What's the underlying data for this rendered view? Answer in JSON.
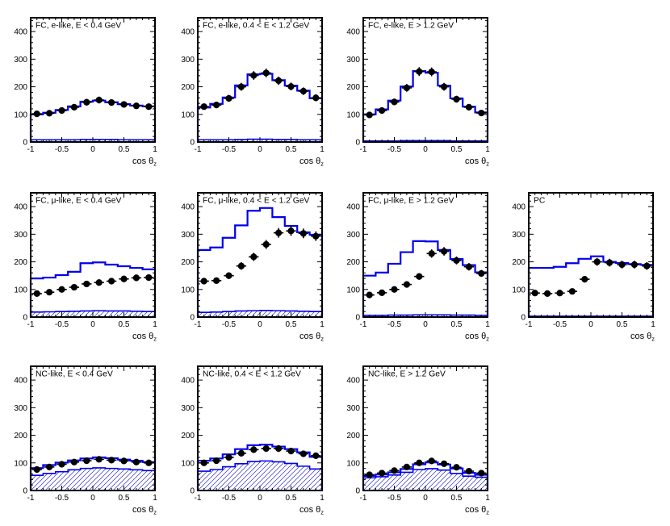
{
  "figure": {
    "xlabel_base": "cos θ",
    "xlabel_sub": "z",
    "colors": {
      "mc_line": "#0000ee",
      "hatch_line": "#3333cc",
      "data_marker": "#000000",
      "frame": "#000000"
    }
  },
  "chart_data": {
    "type": "line",
    "x_bin_edges": [
      -1,
      -0.8,
      -0.6,
      -0.4,
      -0.2,
      0,
      0.2,
      0.4,
      0.6,
      0.8,
      1
    ],
    "x_centers": [
      -0.9,
      -0.7,
      -0.5,
      -0.3,
      -0.1,
      0.1,
      0.3,
      0.5,
      0.7,
      0.9
    ],
    "xlabel": "cos θ_z",
    "xticks": [
      -1,
      -0.5,
      0,
      0.5,
      1
    ],
    "yticks": [
      0,
      100,
      200,
      300,
      400
    ],
    "ylim": [
      0,
      450
    ],
    "grid": false,
    "legend_position": "none",
    "panels": [
      {
        "id": "fc-elike-low",
        "title": "FC, e-like, E < 0.4 GeV",
        "row": 0,
        "col": 0,
        "data": [
          102,
          104,
          114,
          126,
          144,
          152,
          143,
          136,
          131,
          128
        ],
        "total_mc": [
          100,
          106,
          116,
          129,
          146,
          150,
          144,
          137,
          132,
          129
        ],
        "background": [
          8,
          8,
          8,
          8,
          9,
          9,
          9,
          8,
          8,
          8
        ]
      },
      {
        "id": "fc-elike-mid",
        "title": "FC, e-like, 0.4 < E < 1.2 GeV",
        "row": 0,
        "col": 1,
        "data": [
          128,
          134,
          158,
          200,
          241,
          250,
          222,
          201,
          184,
          160
        ],
        "total_mc": [
          125,
          138,
          161,
          205,
          245,
          247,
          224,
          204,
          186,
          158
        ],
        "background": [
          8,
          8,
          8,
          9,
          10,
          10,
          9,
          9,
          8,
          8
        ]
      },
      {
        "id": "fc-elike-high",
        "title": "FC, e-like, E > 1.2 GeV",
        "row": 0,
        "col": 2,
        "data": [
          98,
          114,
          145,
          196,
          255,
          254,
          200,
          155,
          126,
          105
        ],
        "total_mc": [
          100,
          118,
          150,
          201,
          257,
          251,
          204,
          158,
          128,
          107
        ],
        "background": [
          4,
          4,
          4,
          5,
          5,
          5,
          5,
          4,
          4,
          4
        ]
      },
      {
        "id": "fc-mulike-low",
        "title": "FC, μ-like, E < 0.4 GeV",
        "row": 1,
        "col": 0,
        "data": [
          85,
          90,
          100,
          108,
          120,
          125,
          130,
          138,
          142,
          143
        ],
        "total_mc": [
          140,
          143,
          152,
          164,
          195,
          198,
          190,
          184,
          178,
          173
        ],
        "background": [
          18,
          19,
          20,
          21,
          22,
          23,
          22,
          22,
          21,
          20
        ]
      },
      {
        "id": "fc-mulike-mid",
        "title": "FC, μ-like, 0.4 < E < 1.2 GeV",
        "row": 1,
        "col": 1,
        "data": [
          130,
          132,
          150,
          185,
          218,
          263,
          305,
          312,
          303,
          293
        ],
        "total_mc": [
          243,
          252,
          287,
          332,
          385,
          395,
          362,
          330,
          307,
          298
        ],
        "background": [
          17,
          18,
          20,
          22,
          23,
          24,
          23,
          22,
          21,
          20
        ]
      },
      {
        "id": "fc-mulike-high",
        "title": "FC, μ-like, E > 1.2 GeV",
        "row": 1,
        "col": 2,
        "data": [
          80,
          88,
          100,
          118,
          147,
          230,
          238,
          205,
          182,
          158
        ],
        "total_mc": [
          150,
          161,
          193,
          235,
          275,
          274,
          243,
          210,
          188,
          162
        ],
        "background": [
          6,
          6,
          7,
          7,
          8,
          8,
          8,
          7,
          7,
          6
        ]
      },
      {
        "id": "pc",
        "title": "PC",
        "row": 1,
        "col": 3,
        "data": [
          87,
          85,
          87,
          93,
          137,
          200,
          197,
          190,
          190,
          185
        ],
        "total_mc": [
          178,
          178,
          182,
          195,
          211,
          220,
          200,
          196,
          192,
          189
        ],
        "background": [
          3,
          3,
          3,
          3,
          3,
          3,
          3,
          3,
          3,
          3
        ]
      },
      {
        "id": "nclike-low",
        "title": "NC-like, E < 0.4 GeV",
        "row": 2,
        "col": 0,
        "data": [
          76,
          85,
          95,
          103,
          108,
          113,
          110,
          107,
          103,
          100
        ],
        "total_mc": [
          81,
          92,
          101,
          109,
          116,
          120,
          117,
          112,
          108,
          103
        ],
        "background": [
          55,
          62,
          68,
          75,
          80,
          82,
          80,
          78,
          75,
          72
        ]
      },
      {
        "id": "nclike-mid",
        "title": "NC-like, 0.4 < E < 1.2 GeV",
        "row": 2,
        "col": 1,
        "data": [
          100,
          108,
          120,
          135,
          148,
          152,
          152,
          143,
          133,
          126
        ],
        "total_mc": [
          108,
          116,
          131,
          150,
          164,
          166,
          159,
          150,
          138,
          122
        ],
        "background": [
          70,
          76,
          86,
          97,
          105,
          107,
          104,
          98,
          88,
          78
        ]
      },
      {
        "id": "nclike-high",
        "title": "NC-like, E > 1.2 GeV",
        "row": 2,
        "col": 2,
        "data": [
          57,
          63,
          72,
          85,
          100,
          107,
          97,
          84,
          70,
          63
        ],
        "total_mc": [
          53,
          58,
          66,
          78,
          95,
          102,
          94,
          80,
          64,
          57
        ],
        "background": [
          46,
          50,
          56,
          66,
          76,
          79,
          74,
          62,
          52,
          48
        ]
      }
    ]
  }
}
